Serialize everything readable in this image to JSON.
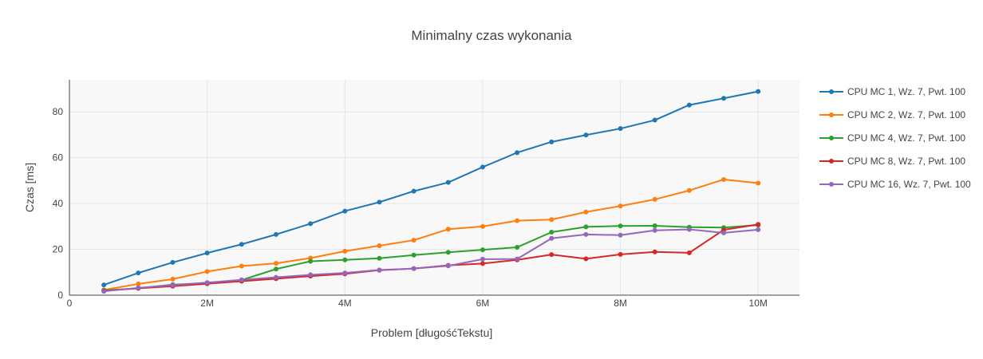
{
  "chart_data": {
    "type": "line",
    "title": "Minimalny czas wykonania",
    "xlabel": "Problem [długośćTekstu]",
    "ylabel": "Czas [ms]",
    "xlim": [
      0,
      10600000
    ],
    "ylim": [
      0,
      94
    ],
    "x_ticks": [
      {
        "value": 0,
        "label": "0"
      },
      {
        "value": 2000000,
        "label": "2M"
      },
      {
        "value": 4000000,
        "label": "4M"
      },
      {
        "value": 6000000,
        "label": "6M"
      },
      {
        "value": 8000000,
        "label": "8M"
      },
      {
        "value": 10000000,
        "label": "10M"
      }
    ],
    "y_ticks": [
      {
        "value": 0,
        "label": "0"
      },
      {
        "value": 20,
        "label": "20"
      },
      {
        "value": 40,
        "label": "40"
      },
      {
        "value": 60,
        "label": "60"
      },
      {
        "value": 80,
        "label": "80"
      }
    ],
    "grid": true,
    "legend_position": "right",
    "x": [
      500000,
      1000000,
      1500000,
      2000000,
      2500000,
      3000000,
      3500000,
      4000000,
      4500000,
      5000000,
      5500000,
      6000000,
      6500000,
      7000000,
      7500000,
      8000000,
      8500000,
      9000000,
      9500000,
      10000000
    ],
    "series": [
      {
        "name": "CPU MC 1, Wz. 7, Pwt. 100",
        "color": "#1f77b4",
        "values": [
          4.5,
          9.7,
          14.3,
          18.4,
          22.2,
          26.5,
          31.2,
          36.7,
          40.6,
          45.4,
          49.2,
          55.9,
          62.2,
          66.9,
          69.9,
          72.7,
          76.4,
          83.0,
          85.9,
          88.9
        ]
      },
      {
        "name": "CPU MC 2, Wz. 7, Pwt. 100",
        "color": "#ff7f0e",
        "values": [
          2.3,
          4.9,
          7.0,
          10.3,
          12.7,
          13.9,
          16.2,
          19.2,
          21.6,
          24.0,
          28.8,
          30.0,
          32.5,
          33.0,
          36.3,
          38.9,
          41.8,
          45.7,
          50.5,
          48.9
        ]
      },
      {
        "name": "CPU MC 4, Wz. 7, Pwt. 100",
        "color": "#2ca02c",
        "values": [
          2.1,
          3.0,
          4.6,
          5.2,
          6.6,
          11.4,
          14.8,
          15.4,
          16.1,
          17.5,
          18.7,
          19.8,
          20.9,
          27.5,
          29.8,
          30.2,
          30.3,
          29.7,
          29.5,
          30.6
        ]
      },
      {
        "name": "CPU MC 8, Wz. 7, Pwt. 100",
        "color": "#d62728",
        "values": [
          1.9,
          3.0,
          3.9,
          5.0,
          6.1,
          7.2,
          8.3,
          9.3,
          10.9,
          11.6,
          13.0,
          13.8,
          15.4,
          17.7,
          15.9,
          17.8,
          18.9,
          18.5,
          28.5,
          30.9
        ]
      },
      {
        "name": "CPU MC 16, Wz. 7, Pwt. 100",
        "color": "#9467bd",
        "values": [
          1.7,
          3.2,
          4.4,
          5.5,
          6.7,
          7.8,
          8.9,
          9.7,
          11.0,
          11.6,
          12.8,
          15.7,
          15.8,
          24.8,
          26.5,
          26.2,
          28.3,
          28.7,
          27.2,
          28.6
        ]
      }
    ]
  }
}
